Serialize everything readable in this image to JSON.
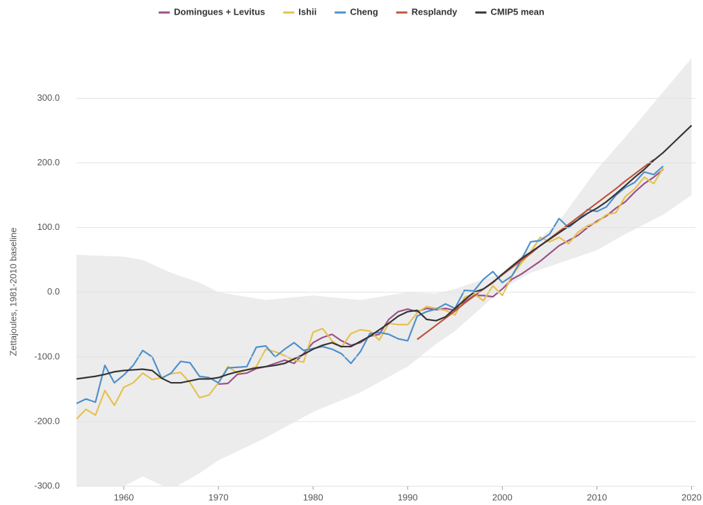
{
  "chart_data": {
    "type": "line",
    "y_label": "Zettajoules, 1981-2010 baseline",
    "x": [
      1955,
      1956,
      1957,
      1958,
      1959,
      1960,
      1961,
      1962,
      1963,
      1964,
      1965,
      1966,
      1967,
      1968,
      1969,
      1970,
      1971,
      1972,
      1973,
      1974,
      1975,
      1976,
      1977,
      1978,
      1979,
      1980,
      1981,
      1982,
      1983,
      1984,
      1985,
      1986,
      1987,
      1988,
      1989,
      1990,
      1991,
      1992,
      1993,
      1994,
      1995,
      1996,
      1997,
      1998,
      1999,
      2000,
      2001,
      2002,
      2003,
      2004,
      2005,
      2006,
      2007,
      2008,
      2009,
      2010,
      2011,
      2012,
      2013,
      2014,
      2015,
      2016,
      2017,
      2018,
      2019,
      2020
    ],
    "series": [
      {
        "name": "Domingues + Levitus",
        "color": "#9b4f8a",
        "values": [
          null,
          null,
          null,
          null,
          null,
          null,
          null,
          null,
          null,
          null,
          null,
          null,
          null,
          null,
          null,
          -142,
          -141,
          -127,
          -125,
          -118,
          -115,
          -110,
          -105,
          -110,
          -95,
          -78,
          -70,
          -65,
          -75,
          -82,
          -78,
          -68,
          -65,
          -42,
          -30,
          -26,
          -30,
          -25,
          -27,
          -25,
          -28,
          -15,
          -5,
          -5,
          -7,
          5,
          20,
          28,
          38,
          48,
          60,
          72,
          80,
          88,
          100,
          110,
          118,
          130,
          140,
          155,
          168,
          178,
          190,
          null,
          null,
          null
        ]
      },
      {
        "name": "Ishii",
        "color": "#e6c04d",
        "values": [
          -196,
          -181,
          -190,
          -152,
          -175,
          -147,
          -140,
          -125,
          -135,
          -132,
          -126,
          -124,
          -140,
          -163,
          -159,
          -140,
          -115,
          -125,
          -120,
          -115,
          -88,
          -92,
          -98,
          -105,
          -108,
          -62,
          -56,
          -75,
          -85,
          -64,
          -58,
          -60,
          -74,
          -48,
          -50,
          -50,
          -32,
          -22,
          -25,
          -28,
          -35,
          -8,
          -2,
          -13,
          10,
          -5,
          25,
          45,
          62,
          85,
          78,
          85,
          75,
          93,
          103,
          108,
          120,
          123,
          148,
          160,
          178,
          168,
          192,
          null,
          null,
          null
        ]
      },
      {
        "name": "Cheng",
        "color": "#4e8fcc",
        "values": [
          -172,
          -165,
          -170,
          -113,
          -140,
          -128,
          -113,
          -90,
          -100,
          -133,
          -125,
          -107,
          -109,
          -130,
          -132,
          -140,
          -117,
          -116,
          -115,
          -85,
          -83,
          -100,
          -88,
          -78,
          -90,
          -87,
          -84,
          -88,
          -95,
          -110,
          -92,
          -64,
          -62,
          -65,
          -72,
          -75,
          -37,
          -30,
          -26,
          -18,
          -25,
          3,
          2,
          20,
          32,
          15,
          25,
          50,
          78,
          80,
          90,
          114,
          100,
          112,
          128,
          125,
          132,
          150,
          162,
          170,
          186,
          182,
          195,
          null,
          null,
          null
        ]
      },
      {
        "name": "Resplandy",
        "color": "#c0543b",
        "values": [
          null,
          null,
          null,
          null,
          null,
          null,
          null,
          null,
          null,
          null,
          null,
          null,
          null,
          null,
          null,
          null,
          null,
          null,
          null,
          null,
          null,
          null,
          null,
          null,
          null,
          null,
          null,
          null,
          null,
          null,
          null,
          null,
          null,
          null,
          null,
          null,
          -73,
          -62,
          -51,
          -40,
          -29,
          -17,
          -6,
          5,
          16,
          27,
          38,
          49,
          60,
          72,
          83,
          94,
          105,
          116,
          127,
          138,
          149,
          160,
          172,
          183,
          194,
          205,
          null,
          null,
          null,
          null
        ]
      },
      {
        "name": "CMIP5 mean",
        "color": "#333333",
        "values": [
          -134,
          -132,
          -130,
          -127,
          -123,
          -121,
          -120,
          -119,
          -121,
          -133,
          -140,
          -140,
          -137,
          -134,
          -134,
          -132,
          -127,
          -123,
          -120,
          -117,
          -115,
          -113,
          -110,
          -103,
          -96,
          -88,
          -82,
          -78,
          -84,
          -84,
          -76,
          -68,
          -58,
          -48,
          -37,
          -30,
          -28,
          -42,
          -44,
          -38,
          -25,
          -12,
          0,
          5,
          15,
          28,
          40,
          52,
          62,
          72,
          82,
          92,
          102,
          112,
          122,
          130,
          140,
          152,
          165,
          178,
          190,
          204,
          216,
          230,
          244,
          258
        ]
      }
    ],
    "band": {
      "color": "#ececec",
      "x": [
        1955,
        1960,
        1962,
        1965,
        1968,
        1970,
        1975,
        1980,
        1985,
        1990,
        1993,
        1995,
        2000,
        2003,
        2006,
        2010,
        2013,
        2017,
        2020
      ],
      "upper": [
        58,
        55,
        50,
        30,
        15,
        0,
        -12,
        -5,
        -12,
        0,
        -2,
        5,
        30,
        70,
        110,
        190,
        240,
        310,
        362
      ],
      "lower": [
        -330,
        -300,
        -285,
        -305,
        -280,
        -260,
        -225,
        -185,
        -155,
        -115,
        -80,
        -60,
        5,
        30,
        45,
        65,
        90,
        120,
        150
      ]
    },
    "xlim": [
      1955,
      2020.4
    ],
    "xticks": [
      1960,
      1970,
      1980,
      1990,
      2000,
      2010,
      2020
    ],
    "ylim": [
      -300,
      380
    ],
    "yticks": [
      {
        "value": -300,
        "label": "-300.0"
      },
      {
        "value": -200,
        "label": "-200.0"
      },
      {
        "value": -100,
        "label": "-100.0"
      },
      {
        "value": 0,
        "label": "0.0"
      },
      {
        "value": 100,
        "label": "100.0"
      },
      {
        "value": 200,
        "label": "200.0"
      },
      {
        "value": 300,
        "label": "300.0"
      }
    ],
    "grid": true
  }
}
